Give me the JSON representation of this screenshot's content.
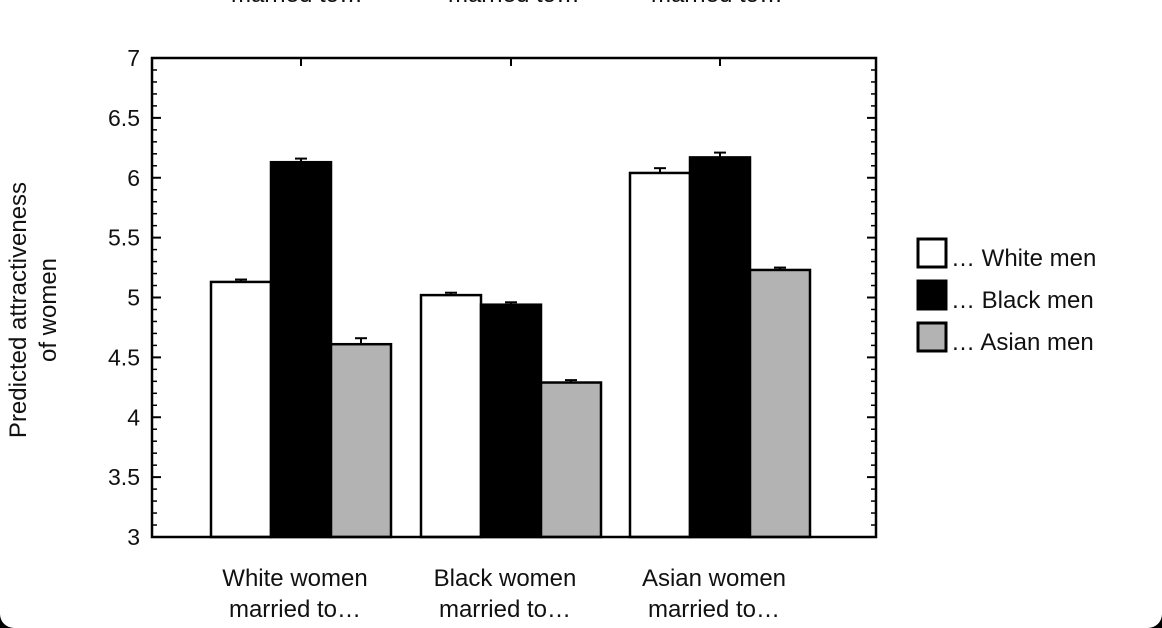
{
  "top_cut_text": [
    "married to…",
    "married to…",
    "married to…"
  ],
  "chart_data": {
    "type": "bar",
    "ylabel": [
      "Predicted attractiveness",
      "of women"
    ],
    "ylim": [
      3,
      7
    ],
    "yticks": [
      "3",
      "3.5",
      "4",
      "4.5",
      "5",
      "5.5",
      "6",
      "6.5",
      "7"
    ],
    "categories": [
      [
        "White women",
        "married to…"
      ],
      [
        "Black women",
        "married to…"
      ],
      [
        "Asian women",
        "married to…"
      ]
    ],
    "series": [
      {
        "name": "… White men",
        "values": [
          5.13,
          5.02,
          6.04
        ],
        "errors": [
          0.02,
          0.02,
          0.04
        ],
        "color": "#ffffff"
      },
      {
        "name": "… Black men",
        "values": [
          6.13,
          4.94,
          6.17
        ],
        "errors": [
          0.03,
          0.02,
          0.04
        ],
        "color": "#000000"
      },
      {
        "name": "… Asian men",
        "values": [
          4.61,
          4.29,
          5.23
        ],
        "errors": [
          0.05,
          0.02,
          0.02
        ],
        "color": "#b3b3b3"
      }
    ],
    "legend_position": "right",
    "grid": false
  }
}
